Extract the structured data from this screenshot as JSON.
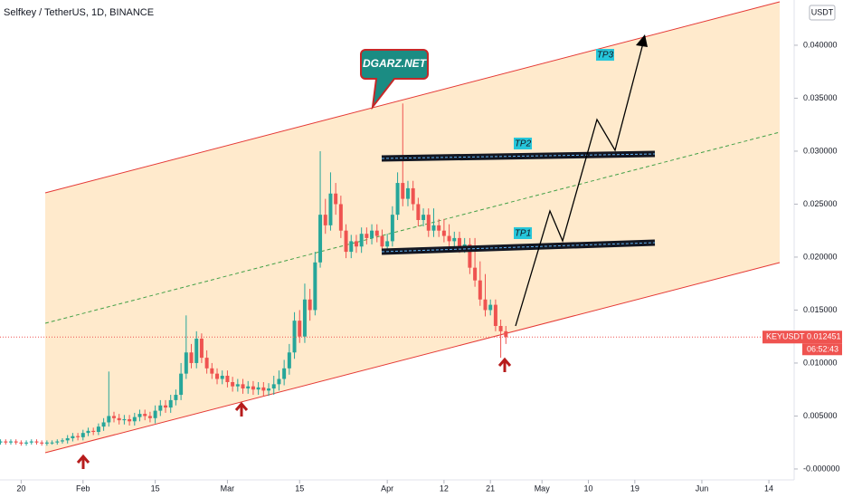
{
  "chart_data": {
    "type": "candlestick",
    "title": "Selfkey / TetherUS, 1D, BINANCE",
    "currency": "USDT",
    "symbol_label": "KEYUSDT",
    "countdown": "06:52:43",
    "annotations": {
      "callout": "DGARZ.NET",
      "tp1": "TP1",
      "tp2": "TP2",
      "tp3": "TP3"
    },
    "up_color": "#26a69a",
    "down_color": "#ef5350",
    "xlim": [
      15.9,
      169.9
    ],
    "ylim": [
      -0.00103,
      0.04427
    ],
    "xticks": [
      20,
      {
        "value": 32,
        "label": "Feb"
      },
      {
        "value": 46,
        "label": "15"
      },
      {
        "value": 60,
        "label": "Mar"
      },
      {
        "value": 74,
        "label": "15"
      },
      {
        "value": 91,
        "label": "Apr"
      },
      {
        "value": 102,
        "label": "12"
      },
      {
        "value": 111,
        "label": "21"
      },
      {
        "value": 121,
        "label": "May"
      },
      {
        "value": 130,
        "label": "10"
      },
      {
        "value": 139,
        "label": "19"
      },
      {
        "value": 152,
        "label": "Jun"
      },
      {
        "value": 165,
        "label": "14"
      }
    ],
    "yticks": [
      {
        "value": 0.04,
        "label": "0.040000"
      },
      {
        "value": 0.035,
        "label": "0.035000"
      },
      {
        "value": 0.03,
        "label": "0.030000"
      },
      {
        "value": 0.025,
        "label": "0.025000"
      },
      {
        "value": 0.02,
        "label": "0.020000"
      },
      {
        "value": 0.015,
        "label": "0.015000"
      },
      {
        "value": 0.01,
        "label": "0.010000"
      },
      {
        "value": 0.005,
        "label": "0.005000"
      },
      {
        "value": 0,
        "label": "-0.000000"
      }
    ],
    "x": [
      16,
      17,
      18,
      19,
      20,
      21,
      22,
      23,
      24,
      25,
      26,
      27,
      28,
      29,
      30,
      31,
      32,
      33,
      34,
      35,
      36,
      37,
      38,
      39,
      40,
      41,
      42,
      43,
      44,
      45,
      46,
      47,
      48,
      49,
      50,
      51,
      52,
      53,
      54,
      55,
      56,
      57,
      58,
      59,
      60,
      61,
      62,
      63,
      64,
      65,
      66,
      67,
      68,
      69,
      70,
      71,
      72,
      73,
      74,
      75,
      76,
      77,
      78,
      79,
      80,
      81,
      82,
      83,
      84,
      85,
      86,
      87,
      88,
      89,
      90,
      91,
      92,
      93,
      94,
      95,
      96,
      97,
      98,
      99,
      100,
      101,
      102,
      103,
      104,
      105,
      106,
      107,
      108,
      109,
      110,
      111,
      112,
      113,
      114
    ],
    "open": [
      0.0025,
      0.0026,
      0.0025,
      0.0026,
      0.0025,
      0.0024,
      0.0025,
      0.0026,
      0.0025,
      0.0024,
      0.0025,
      0.0025,
      0.0026,
      0.0027,
      0.0029,
      0.0031,
      0.003,
      0.0034,
      0.0036,
      0.0035,
      0.004,
      0.0044,
      0.005,
      0.0048,
      0.0046,
      0.0047,
      0.0045,
      0.0049,
      0.0052,
      0.005,
      0.0048,
      0.0055,
      0.006,
      0.0058,
      0.0065,
      0.007,
      0.009,
      0.011,
      0.01,
      0.0123,
      0.0105,
      0.0095,
      0.009,
      0.0085,
      0.0088,
      0.0082,
      0.0078,
      0.008,
      0.0076,
      0.0078,
      0.0075,
      0.0077,
      0.0074,
      0.0076,
      0.008,
      0.0085,
      0.0095,
      0.011,
      0.014,
      0.0125,
      0.016,
      0.015,
      0.0195,
      0.024,
      0.023,
      0.026,
      0.025,
      0.0225,
      0.0205,
      0.0215,
      0.021,
      0.0222,
      0.0218,
      0.0225,
      0.022,
      0.021,
      0.0215,
      0.024,
      0.027,
      0.0255,
      0.0265,
      0.025,
      0.0235,
      0.024,
      0.0225,
      0.023,
      0.0225,
      0.022,
      0.0215,
      0.0218,
      0.021,
      0.0212,
      0.019,
      0.0178,
      0.016,
      0.015,
      0.0155,
      0.0135,
      0.013
    ],
    "high": [
      0.0028,
      0.0028,
      0.0028,
      0.0028,
      0.0027,
      0.0027,
      0.0028,
      0.0028,
      0.0027,
      0.0027,
      0.0027,
      0.0028,
      0.0029,
      0.0032,
      0.0034,
      0.0034,
      0.0037,
      0.0039,
      0.0039,
      0.0043,
      0.0048,
      0.0092,
      0.0054,
      0.0052,
      0.0051,
      0.0051,
      0.0053,
      0.0056,
      0.0056,
      0.0054,
      0.006,
      0.0065,
      0.0065,
      0.007,
      0.0075,
      0.01,
      0.0145,
      0.0118,
      0.013,
      0.0128,
      0.0112,
      0.01,
      0.0095,
      0.0093,
      0.0093,
      0.0087,
      0.0085,
      0.0085,
      0.0083,
      0.0083,
      0.0082,
      0.0082,
      0.0081,
      0.0088,
      0.0093,
      0.0103,
      0.0118,
      0.0148,
      0.015,
      0.0175,
      0.017,
      0.0205,
      0.03,
      0.0255,
      0.028,
      0.027,
      0.0258,
      0.0231,
      0.0221,
      0.0221,
      0.0228,
      0.0228,
      0.0231,
      0.0231,
      0.0226,
      0.0222,
      0.0248,
      0.028,
      0.0345,
      0.0272,
      0.0272,
      0.0256,
      0.0246,
      0.0246,
      0.0246,
      0.0236,
      0.0236,
      0.0231,
      0.0224,
      0.0224,
      0.0218,
      0.0218,
      0.0218,
      0.0196,
      0.0184,
      0.016,
      0.016,
      0.0141,
      0.0135
    ],
    "low": [
      0.0023,
      0.0023,
      0.0023,
      0.0023,
      0.0022,
      0.0022,
      0.0023,
      0.0023,
      0.0022,
      0.0022,
      0.0023,
      0.0023,
      0.0024,
      0.0024,
      0.0026,
      0.0027,
      0.0027,
      0.0031,
      0.0032,
      0.0032,
      0.0036,
      0.004,
      0.0044,
      0.0042,
      0.0042,
      0.0041,
      0.0041,
      0.0045,
      0.0046,
      0.0044,
      0.0043,
      0.005,
      0.0053,
      0.0053,
      0.006,
      0.0065,
      0.0085,
      0.0095,
      0.0095,
      0.01,
      0.009,
      0.0085,
      0.008,
      0.008,
      0.0077,
      0.0073,
      0.0073,
      0.0071,
      0.0071,
      0.007,
      0.007,
      0.0069,
      0.0069,
      0.007,
      0.0074,
      0.0079,
      0.0089,
      0.0104,
      0.0119,
      0.0119,
      0.014,
      0.0145,
      0.019,
      0.0222,
      0.0225,
      0.024,
      0.0218,
      0.0199,
      0.0199,
      0.0204,
      0.0204,
      0.0212,
      0.0212,
      0.0214,
      0.0204,
      0.0204,
      0.021,
      0.0235,
      0.0248,
      0.0248,
      0.0244,
      0.0229,
      0.0229,
      0.0219,
      0.0219,
      0.0219,
      0.0214,
      0.0209,
      0.0209,
      0.0204,
      0.0204,
      0.0184,
      0.0172,
      0.0154,
      0.0144,
      0.0145,
      0.013,
      0.0105,
      0.0118
    ],
    "close": [
      0.0026,
      0.0025,
      0.0026,
      0.0025,
      0.0024,
      0.0025,
      0.0026,
      0.0025,
      0.0024,
      0.0025,
      0.0025,
      0.0026,
      0.0027,
      0.0029,
      0.0031,
      0.003,
      0.0034,
      0.0036,
      0.0035,
      0.004,
      0.0044,
      0.005,
      0.0048,
      0.0046,
      0.0047,
      0.0045,
      0.0049,
      0.0052,
      0.005,
      0.0048,
      0.0055,
      0.006,
      0.0058,
      0.0065,
      0.007,
      0.009,
      0.011,
      0.01,
      0.0123,
      0.0105,
      0.0095,
      0.009,
      0.0085,
      0.0088,
      0.0082,
      0.0078,
      0.008,
      0.0076,
      0.0078,
      0.0075,
      0.0077,
      0.0074,
      0.0076,
      0.008,
      0.0085,
      0.0095,
      0.011,
      0.014,
      0.0125,
      0.016,
      0.015,
      0.0195,
      0.024,
      0.023,
      0.026,
      0.025,
      0.0225,
      0.0205,
      0.0215,
      0.021,
      0.0222,
      0.0218,
      0.0225,
      0.022,
      0.021,
      0.0215,
      0.024,
      0.027,
      0.0255,
      0.0265,
      0.025,
      0.0235,
      0.024,
      0.0225,
      0.023,
      0.0225,
      0.022,
      0.0215,
      0.0218,
      0.021,
      0.0212,
      0.019,
      0.0178,
      0.016,
      0.015,
      0.0155,
      0.0135,
      0.013,
      0.012451
    ]
  }
}
